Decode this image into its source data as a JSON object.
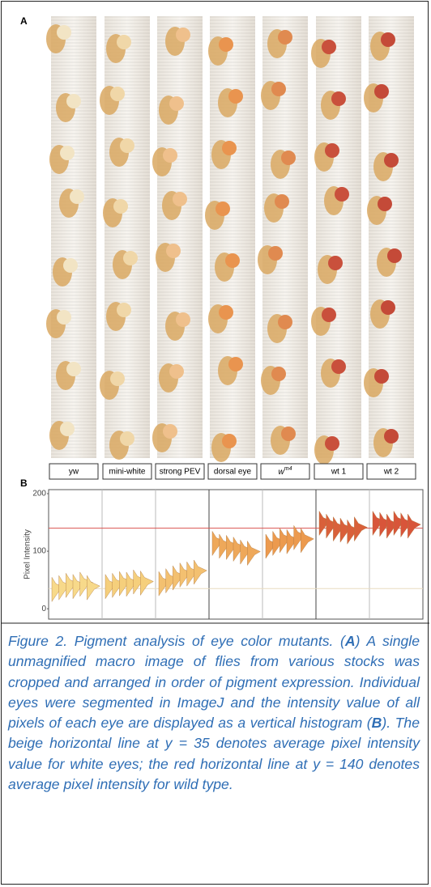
{
  "panel_a": {
    "label": "A",
    "stocks": [
      "yw",
      "mini-white",
      "strong PEV",
      "dorsal eye",
      {
        "text": "w",
        "sup": "m4"
      },
      "wt 1",
      "wt 2"
    ]
  },
  "chart_data": {
    "type": "violin",
    "label": "B",
    "y_label": "Pixel Intensity",
    "ylim": [
      -18,
      207
    ],
    "yticks": [
      0,
      100,
      200
    ],
    "hlines": [
      {
        "value": 35,
        "color": "#e8dcc0"
      },
      {
        "value": 140,
        "color": "#d9534f"
      }
    ],
    "groups": [
      {
        "color": "#f7d98a",
        "values": [
          35,
          38,
          42,
          40,
          44,
          38
        ]
      },
      {
        "color": "#f5cf7c",
        "values": [
          40,
          42,
          45,
          44,
          48,
          46
        ]
      },
      {
        "color": "#f3c070",
        "values": [
          45,
          50,
          55,
          60,
          62,
          65
        ]
      },
      {
        "color": "#eea85a",
        "values": [
          115,
          110,
          108,
          105,
          100,
          98
        ]
      },
      {
        "color": "#ec9a4e",
        "values": [
          110,
          115,
          120,
          118,
          125,
          120
        ]
      },
      {
        "color": "#d9603a",
        "values": [
          150,
          145,
          140,
          138,
          135,
          140
        ]
      },
      {
        "color": "#d8553a",
        "values": [
          150,
          148,
          145,
          150,
          147,
          145
        ]
      }
    ]
  },
  "caption": [
    "Figure 2. Pigment analysis of eye color mutants. (",
    "A",
    ") A single unmagnified macro image of flies from various stocks was cropped and arranged in order of pigment expression. Individual eyes were segmented in ImageJ and the intensity value of all pixels of each eye are displayed as a vertical histogram (",
    "B",
    "). The beige horizontal line at y = 35 denotes average pixel intensity value for white eyes; the red horizontal line at y = 140 denotes average pixel intensity for wild type."
  ]
}
